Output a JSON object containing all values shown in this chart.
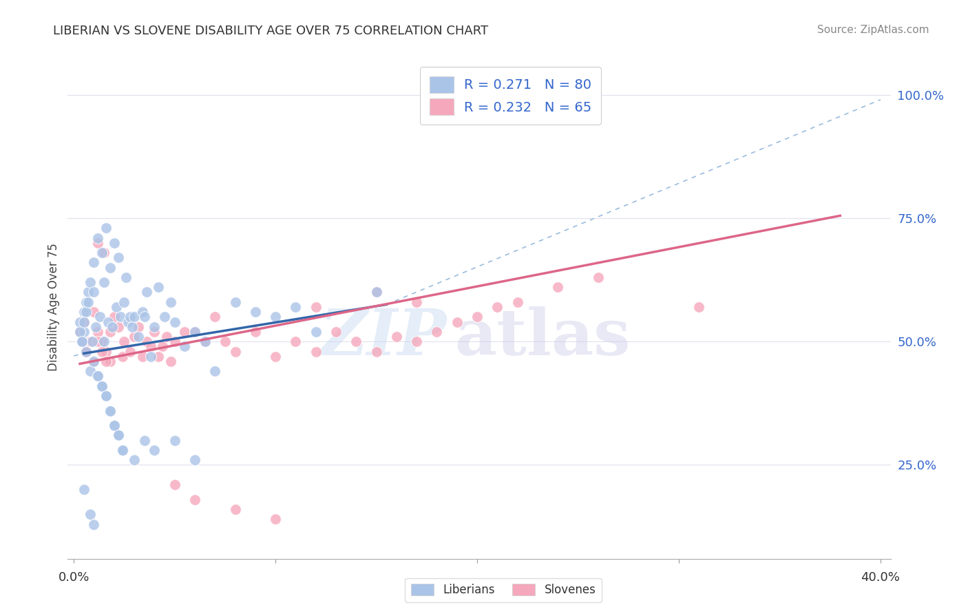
{
  "title": "LIBERIAN VS SLOVENE DISABILITY AGE OVER 75 CORRELATION CHART",
  "source": "Source: ZipAtlas.com",
  "ylabel": "Disability Age Over 75",
  "ytick_vals": [
    0.25,
    0.5,
    0.75,
    1.0
  ],
  "ytick_labels": [
    "25.0%",
    "50.0%",
    "75.0%",
    "100.0%"
  ],
  "liberian_R": 0.271,
  "liberian_N": 80,
  "slovene_R": 0.232,
  "slovene_N": 65,
  "liberian_color": "#aac4e8",
  "slovene_color": "#f5a8bc",
  "liberian_line_color": "#3366aa",
  "slovene_line_color": "#dd6688",
  "dashed_line_color": "#99aaccaa",
  "xlim": [
    -0.003,
    0.405
  ],
  "ylim": [
    0.06,
    1.08
  ],
  "watermark_zip": "ZIP",
  "watermark_atlas": "atlas",
  "background_color": "#ffffff",
  "grid_color": "#e0e0ee",
  "lib_line_x": [
    0.005,
    0.155
  ],
  "lib_line_y": [
    0.476,
    0.575
  ],
  "slov_line_x": [
    0.003,
    0.38
  ],
  "slov_line_y": [
    0.455,
    0.755
  ],
  "dash_line_x": [
    0.155,
    0.4
  ],
  "dash_line_y": [
    0.575,
    0.99
  ],
  "lib_scatter_x": [
    0.003,
    0.004,
    0.005,
    0.005,
    0.006,
    0.006,
    0.007,
    0.008,
    0.008,
    0.009,
    0.01,
    0.01,
    0.01,
    0.011,
    0.012,
    0.012,
    0.013,
    0.014,
    0.014,
    0.015,
    0.015,
    0.016,
    0.016,
    0.017,
    0.018,
    0.018,
    0.019,
    0.02,
    0.02,
    0.021,
    0.022,
    0.022,
    0.023,
    0.024,
    0.025,
    0.026,
    0.027,
    0.028,
    0.029,
    0.03,
    0.032,
    0.034,
    0.035,
    0.036,
    0.038,
    0.04,
    0.042,
    0.045,
    0.048,
    0.05,
    0.055,
    0.06,
    0.065,
    0.07,
    0.08,
    0.09,
    0.1,
    0.11,
    0.12,
    0.15,
    0.003,
    0.004,
    0.005,
    0.006,
    0.008,
    0.01,
    0.012,
    0.014,
    0.016,
    0.018,
    0.02,
    0.022,
    0.024,
    0.03,
    0.035,
    0.04,
    0.05,
    0.06,
    0.005,
    0.007
  ],
  "lib_scatter_y": [
    0.54,
    0.5,
    0.52,
    0.56,
    0.48,
    0.58,
    0.6,
    0.44,
    0.62,
    0.5,
    0.46,
    0.66,
    0.6,
    0.53,
    0.43,
    0.71,
    0.55,
    0.41,
    0.68,
    0.5,
    0.62,
    0.39,
    0.73,
    0.54,
    0.36,
    0.65,
    0.53,
    0.33,
    0.7,
    0.57,
    0.31,
    0.67,
    0.55,
    0.28,
    0.58,
    0.63,
    0.54,
    0.55,
    0.53,
    0.55,
    0.51,
    0.56,
    0.55,
    0.6,
    0.47,
    0.53,
    0.61,
    0.55,
    0.58,
    0.54,
    0.49,
    0.52,
    0.5,
    0.44,
    0.58,
    0.56,
    0.55,
    0.57,
    0.52,
    0.6,
    0.52,
    0.5,
    0.2,
    0.56,
    0.15,
    0.13,
    0.43,
    0.41,
    0.39,
    0.36,
    0.33,
    0.31,
    0.28,
    0.26,
    0.3,
    0.28,
    0.3,
    0.26,
    0.54,
    0.58
  ],
  "slov_scatter_x": [
    0.004,
    0.005,
    0.006,
    0.008,
    0.01,
    0.012,
    0.012,
    0.014,
    0.015,
    0.016,
    0.018,
    0.018,
    0.02,
    0.022,
    0.024,
    0.025,
    0.028,
    0.03,
    0.032,
    0.034,
    0.036,
    0.038,
    0.04,
    0.042,
    0.044,
    0.046,
    0.048,
    0.05,
    0.055,
    0.06,
    0.065,
    0.07,
    0.075,
    0.08,
    0.09,
    0.1,
    0.11,
    0.12,
    0.13,
    0.14,
    0.15,
    0.16,
    0.17,
    0.18,
    0.19,
    0.2,
    0.21,
    0.22,
    0.24,
    0.26,
    0.003,
    0.004,
    0.006,
    0.01,
    0.012,
    0.014,
    0.016,
    0.05,
    0.06,
    0.08,
    0.1,
    0.12,
    0.15,
    0.17,
    0.31
  ],
  "slov_scatter_y": [
    0.5,
    0.54,
    0.48,
    0.5,
    0.56,
    0.52,
    0.7,
    0.5,
    0.68,
    0.48,
    0.46,
    0.52,
    0.55,
    0.53,
    0.47,
    0.5,
    0.48,
    0.51,
    0.53,
    0.47,
    0.5,
    0.49,
    0.52,
    0.47,
    0.49,
    0.51,
    0.46,
    0.5,
    0.52,
    0.52,
    0.5,
    0.55,
    0.5,
    0.48,
    0.52,
    0.47,
    0.5,
    0.48,
    0.52,
    0.5,
    0.48,
    0.51,
    0.5,
    0.52,
    0.54,
    0.55,
    0.57,
    0.58,
    0.61,
    0.63,
    0.52,
    0.5,
    0.48,
    0.46,
    0.5,
    0.48,
    0.46,
    0.21,
    0.18,
    0.16,
    0.14,
    0.57,
    0.6,
    0.58,
    0.57
  ]
}
